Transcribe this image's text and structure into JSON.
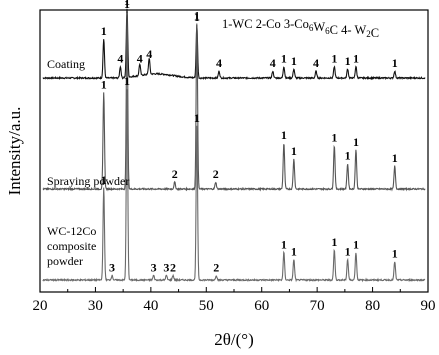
{
  "chart_data": {
    "type": "line",
    "xlabel": "2θ/(°)",
    "ylabel": "Intensity/a.u.",
    "xlim": [
      20,
      90
    ],
    "xticks": [
      20,
      30,
      40,
      50,
      60,
      70,
      80,
      90
    ],
    "legend": "1-WC  2-Co  3-Co6W6C  4- W2C",
    "legend_position": "top-right",
    "series": [
      {
        "name": "Coating",
        "peaks": [
          {
            "x": 31.5,
            "h": 0.17,
            "label": "1"
          },
          {
            "x": 34.5,
            "h": 0.05,
            "label": "4"
          },
          {
            "x": 35.7,
            "h": 0.3,
            "label": "1"
          },
          {
            "x": 38.0,
            "h": 0.05,
            "label": "4"
          },
          {
            "x": 39.7,
            "h": 0.07,
            "label": "4"
          },
          {
            "x": 48.3,
            "h": 0.23,
            "label": "1"
          },
          {
            "x": 52.3,
            "h": 0.03,
            "label": "4"
          },
          {
            "x": 62.0,
            "h": 0.03,
            "label": "4"
          },
          {
            "x": 64.0,
            "h": 0.05,
            "label": "1"
          },
          {
            "x": 65.8,
            "h": 0.04,
            "label": "1"
          },
          {
            "x": 69.8,
            "h": 0.03,
            "label": "4"
          },
          {
            "x": 73.1,
            "h": 0.05,
            "label": "1"
          },
          {
            "x": 75.5,
            "h": 0.04,
            "label": "1"
          },
          {
            "x": 77.0,
            "h": 0.05,
            "label": "1"
          },
          {
            "x": 84.0,
            "h": 0.03,
            "label": "1"
          }
        ]
      },
      {
        "name": "Spraying powder",
        "peaks": [
          {
            "x": 31.5,
            "h": 0.42,
            "label": "1"
          },
          {
            "x": 35.7,
            "h": 0.77,
            "label": "1"
          },
          {
            "x": 44.3,
            "h": 0.03,
            "label": "2"
          },
          {
            "x": 48.3,
            "h": 0.72,
            "label": "1"
          },
          {
            "x": 51.7,
            "h": 0.03,
            "label": "2"
          },
          {
            "x": 64.0,
            "h": 0.2,
            "label": "1"
          },
          {
            "x": 65.8,
            "h": 0.13,
            "label": "1"
          },
          {
            "x": 73.1,
            "h": 0.19,
            "label": "1"
          },
          {
            "x": 75.5,
            "h": 0.11,
            "label": "1"
          },
          {
            "x": 77.0,
            "h": 0.17,
            "label": "1"
          },
          {
            "x": 84.0,
            "h": 0.1,
            "label": "1"
          }
        ]
      },
      {
        "name": "WC-12Co composite powder",
        "label_lines": [
          "WC-12Co",
          "composite",
          "powder"
        ],
        "peaks": [
          {
            "x": 31.5,
            "h": 0.4,
            "label": "1"
          },
          {
            "x": 33.0,
            "h": 0.02,
            "label": "3"
          },
          {
            "x": 35.7,
            "h": 0.83,
            "label": "1"
          },
          {
            "x": 40.5,
            "h": 0.02,
            "label": "3"
          },
          {
            "x": 42.8,
            "h": 0.02,
            "label": "3"
          },
          {
            "x": 44.0,
            "h": 0.02,
            "label": "2"
          },
          {
            "x": 48.3,
            "h": 0.67,
            "label": "1"
          },
          {
            "x": 51.8,
            "h": 0.02,
            "label": "2"
          },
          {
            "x": 64.0,
            "h": 0.12,
            "label": "1"
          },
          {
            "x": 65.8,
            "h": 0.09,
            "label": "1"
          },
          {
            "x": 73.1,
            "h": 0.13,
            "label": "1"
          },
          {
            "x": 75.5,
            "h": 0.09,
            "label": "1"
          },
          {
            "x": 77.0,
            "h": 0.12,
            "label": "1"
          },
          {
            "x": 84.0,
            "h": 0.08,
            "label": "1"
          }
        ]
      }
    ]
  }
}
